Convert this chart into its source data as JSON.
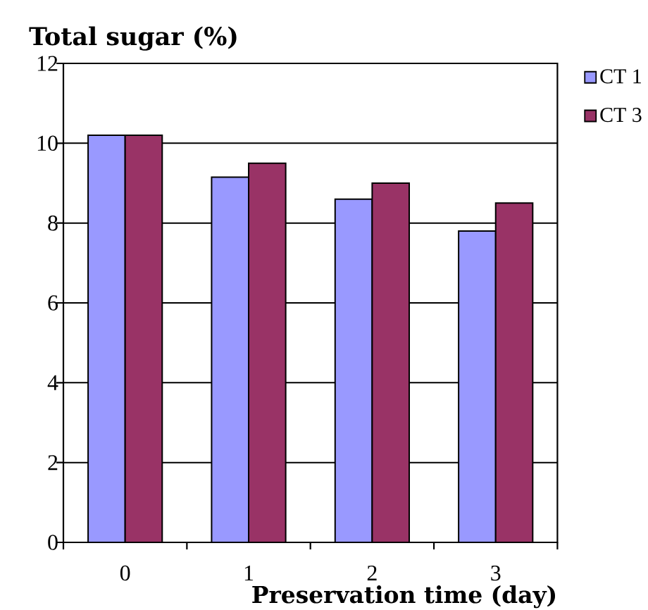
{
  "chart_data": {
    "type": "bar",
    "ylabel": "Total sugar (%)",
    "xlabel": "Preservation time (day)",
    "categories": [
      "0",
      "1",
      "2",
      "3"
    ],
    "series": [
      {
        "name": "CT 1",
        "color": "#9999ff",
        "values": [
          10.2,
          9.15,
          8.6,
          7.8
        ]
      },
      {
        "name": "CT 3",
        "color": "#993366",
        "values": [
          10.2,
          9.5,
          9.0,
          8.5
        ]
      }
    ],
    "ylim": [
      0,
      12
    ],
    "yticks": [
      0,
      2,
      4,
      6,
      8,
      10,
      12
    ],
    "grid": "y",
    "legend": "top right"
  }
}
